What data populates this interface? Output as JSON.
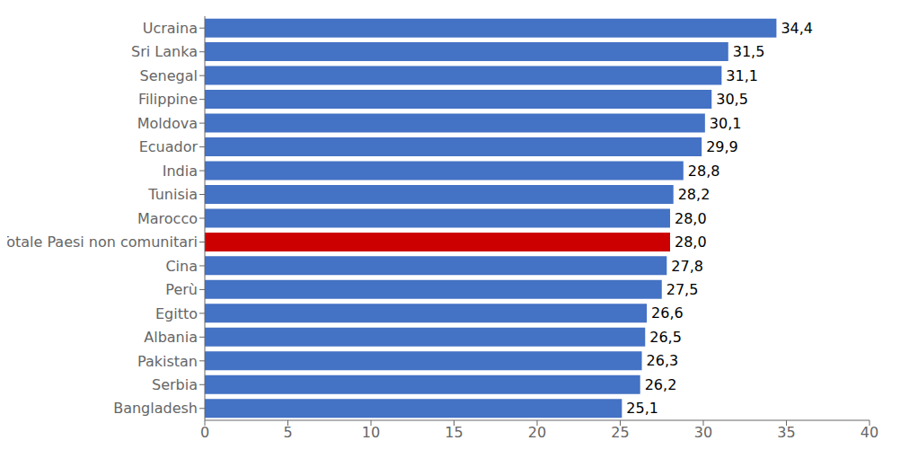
{
  "chart_data": {
    "type": "bar",
    "orientation": "horizontal",
    "categories": [
      "Ucraina",
      "Sri Lanka",
      "Senegal",
      "Filippine",
      "Moldova",
      "Ecuador",
      "India",
      "Tunisia",
      "Marocco",
      "Totale Paesi non comunitari",
      "Cina",
      "Perù",
      "Egitto",
      "Albania",
      "Pakistan",
      "Serbia",
      "Bangladesh"
    ],
    "values": [
      34.4,
      31.5,
      31.1,
      30.5,
      30.1,
      29.9,
      28.8,
      28.2,
      28.0,
      28.0,
      27.8,
      27.5,
      26.6,
      26.5,
      26.3,
      26.2,
      25.1
    ],
    "value_labels": [
      "34,4",
      "31,5",
      "31,1",
      "30,5",
      "30,1",
      "29,9",
      "28,8",
      "28,2",
      "28,0",
      "28,0",
      "27,8",
      "27,5",
      "26,6",
      "26,5",
      "26,3",
      "26,2",
      "25,1"
    ],
    "colors": [
      "#4472c4",
      "#4472c4",
      "#4472c4",
      "#4472c4",
      "#4472c4",
      "#4472c4",
      "#4472c4",
      "#4472c4",
      "#4472c4",
      "#cc0000",
      "#4472c4",
      "#4472c4",
      "#4472c4",
      "#4472c4",
      "#4472c4",
      "#4472c4",
      "#4472c4"
    ],
    "xlim": [
      0,
      40
    ],
    "xticks": [
      0,
      5,
      10,
      15,
      20,
      25,
      30,
      35,
      40
    ],
    "grid": false,
    "data_labels": true
  }
}
